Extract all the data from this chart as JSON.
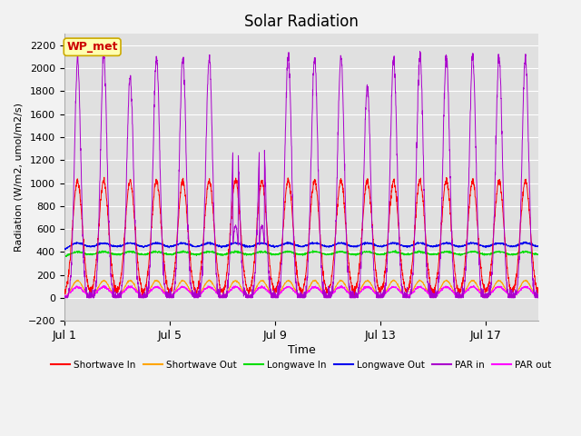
{
  "title": "Solar Radiation",
  "xlabel": "Time",
  "ylabel": "Radiation (W/m2, umol/m2/s)",
  "ylim": [
    -200,
    2300
  ],
  "yticks": [
    -200,
    0,
    200,
    400,
    600,
    800,
    1000,
    1200,
    1400,
    1600,
    1800,
    2000,
    2200
  ],
  "xtick_labels": [
    "Jul 1",
    "Jul 5",
    "Jul 9",
    "Jul 13",
    "Jul 17"
  ],
  "xtick_positions": [
    0,
    4,
    8,
    12,
    16
  ],
  "n_days": 19,
  "fig_bg": "#f2f2f2",
  "ax_bg": "#e0e0e0",
  "grid_color": "#ffffff",
  "series": {
    "shortwave_in": {
      "color": "#ff0000",
      "label": "Shortwave In"
    },
    "shortwave_out": {
      "color": "#ffa500",
      "label": "Shortwave Out"
    },
    "longwave_in": {
      "color": "#00dd00",
      "label": "Longwave In"
    },
    "longwave_out": {
      "color": "#0000ee",
      "label": "Longwave Out"
    },
    "par_in": {
      "color": "#aa00cc",
      "label": "PAR in"
    },
    "par_out": {
      "color": "#ff00ff",
      "label": "PAR out"
    }
  },
  "legend_order": [
    "Shortwave In",
    "Shortwave Out",
    "Longwave In",
    "Longwave Out",
    "PAR in",
    "PAR out"
  ],
  "legend_colors": [
    "#ff0000",
    "#ffa500",
    "#00dd00",
    "#0000ee",
    "#aa00cc",
    "#ff00ff"
  ],
  "wp_met_box": {
    "text": "WP_met",
    "facecolor": "#ffffb0",
    "edgecolor": "#ccaa00",
    "textcolor": "#cc0000",
    "fontsize": 9,
    "fontweight": "bold"
  }
}
